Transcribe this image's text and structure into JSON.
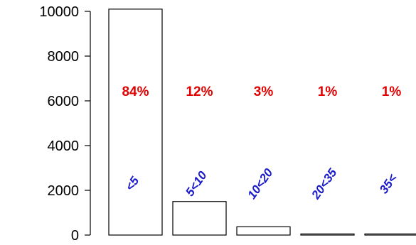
{
  "chart_data": {
    "type": "bar",
    "categories": [
      "<5",
      "5<10",
      "10<20",
      "20<35",
      "35<"
    ],
    "values": [
      10100,
      1500,
      370,
      50,
      50
    ],
    "percent_labels": [
      "84%",
      "12%",
      "3%",
      "1%",
      "1%"
    ],
    "title": "",
    "xlabel": "",
    "ylabel": "",
    "ylim": [
      0,
      10000
    ],
    "yticks": [
      0,
      2000,
      4000,
      6000,
      8000,
      10000
    ],
    "grid": false,
    "legend": "none",
    "colors": {
      "bar_fill": "#ffffff",
      "bar_stroke": "#000000",
      "percent_text": "#e00000",
      "category_text": "#1a1acc",
      "axis": "#000000"
    }
  }
}
